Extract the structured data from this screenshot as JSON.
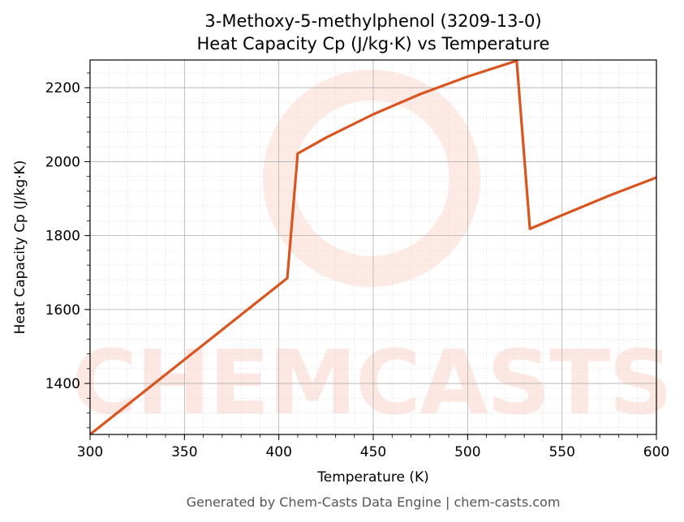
{
  "chart_data": {
    "type": "line",
    "title": [
      "3-Methoxy-5-methylphenol (3209-13-0)",
      "Heat Capacity Cp (J/kg·K) vs Temperature"
    ],
    "xlabel": "Temperature (K)",
    "ylabel": "Heat Capacity Cp (J/kg·K)",
    "xlim": [
      300,
      600
    ],
    "ylim": [
      1262,
      2275
    ],
    "xticks": [
      300,
      350,
      400,
      450,
      500,
      550,
      600
    ],
    "yticks": [
      1400,
      1600,
      1800,
      2000,
      2200
    ],
    "grid": true,
    "series": [
      {
        "color": "#d9541e",
        "x": [
          300,
          404.5,
          410,
          425,
          450,
          475,
          500,
          526,
          533,
          550,
          575,
          600
        ],
        "y": [
          1262,
          1685,
          2022,
          2065,
          2128,
          2183,
          2230,
          2273,
          1818,
          1855,
          1908,
          1957
        ]
      }
    ]
  },
  "watermark": "CHEMCASTS",
  "footer": "Generated by Chem-Casts Data Engine | chem-casts.com"
}
